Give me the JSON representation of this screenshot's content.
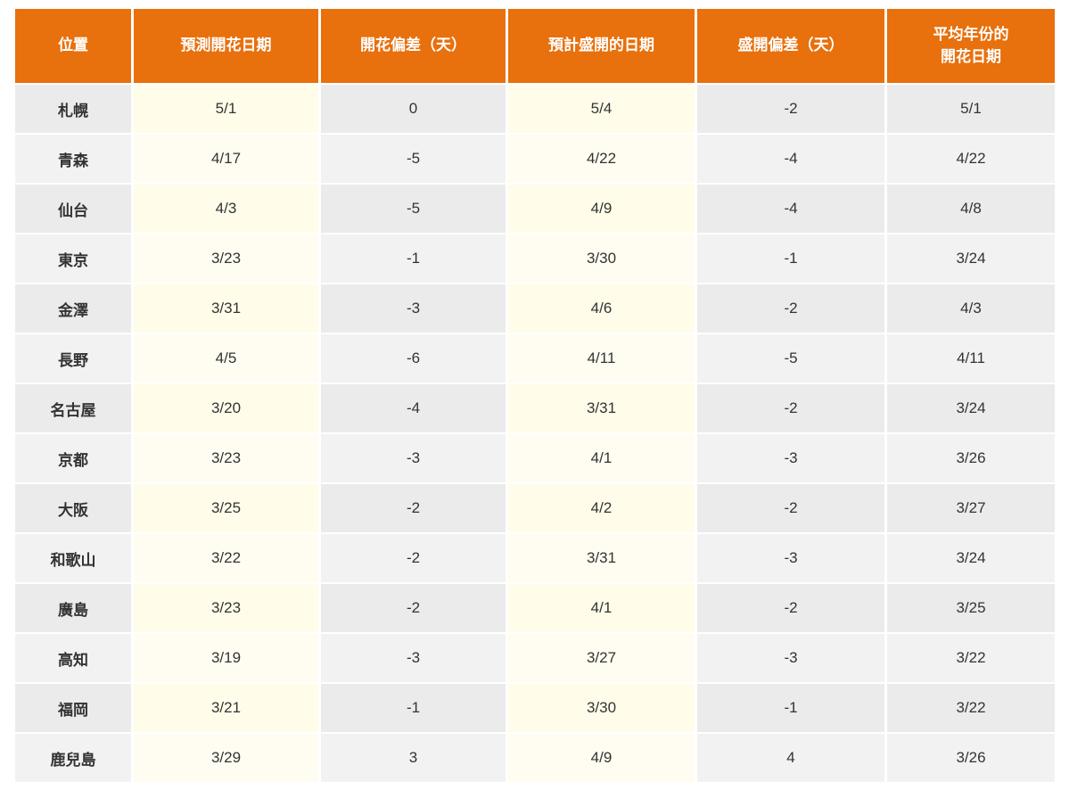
{
  "colors": {
    "header_bg": "#e8700d",
    "header_text": "#ffffff",
    "cell_text": "#333333",
    "grey_odd": "#ebebeb",
    "grey_even": "#f2f2f2",
    "cream_odd": "#fffdea",
    "cream_even": "#fffdf1",
    "separator": "#ffffff",
    "page_bg": "#ffffff"
  },
  "chart_data": {
    "type": "table",
    "title": "",
    "columns": [
      "位置",
      "預測開花日期",
      "開花偏差（天）",
      "預計盛開的日期",
      "盛開偏差（天）",
      "平均年份的\n開花日期"
    ],
    "rows": [
      [
        "札幌",
        "5/1",
        "0",
        "5/4",
        "-2",
        "5/1"
      ],
      [
        "青森",
        "4/17",
        "-5",
        "4/22",
        "-4",
        "4/22"
      ],
      [
        "仙台",
        "4/3",
        "-5",
        "4/9",
        "-4",
        "4/8"
      ],
      [
        "東京",
        "3/23",
        "-1",
        "3/30",
        "-1",
        "3/24"
      ],
      [
        "金澤",
        "3/31",
        "-3",
        "4/6",
        "-2",
        "4/3"
      ],
      [
        "長野",
        "4/5",
        "-6",
        "4/11",
        "-5",
        "4/11"
      ],
      [
        "名古屋",
        "3/20",
        "-4",
        "3/31",
        "-2",
        "3/24"
      ],
      [
        "京都",
        "3/23",
        "-3",
        "4/1",
        "-3",
        "3/26"
      ],
      [
        "大阪",
        "3/25",
        "-2",
        "4/2",
        "-2",
        "3/27"
      ],
      [
        "和歌山",
        "3/22",
        "-2",
        "3/31",
        "-3",
        "3/24"
      ],
      [
        "廣島",
        "3/23",
        "-2",
        "4/1",
        "-2",
        "3/25"
      ],
      [
        "高知",
        "3/19",
        "-3",
        "3/27",
        "-3",
        "3/22"
      ],
      [
        "福岡",
        "3/21",
        "-1",
        "3/30",
        "-1",
        "3/22"
      ],
      [
        "鹿兒島",
        "3/29",
        "3",
        "4/9",
        "4",
        "3/26"
      ]
    ]
  }
}
